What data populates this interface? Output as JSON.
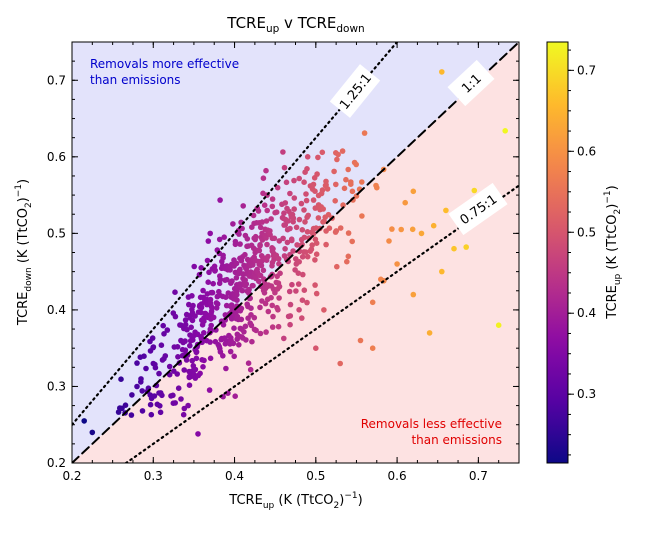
{
  "chart_data": {
    "type": "scatter",
    "title_main": "TCRE",
    "title_sub1": "up",
    "title_mid": " v TCRE",
    "title_sub2": "down",
    "xlabel_main": "TCRE",
    "xlabel_sub": "up",
    "xlabel_unit": " (K (TtCO",
    "xlabel_unit_sub": "2",
    "xlabel_unit_end": ")",
    "xlabel_unit_sup": "−1",
    "xlabel_close": ")",
    "ylabel_main": "TCRE",
    "ylabel_sub": "down",
    "ylabel_unit": " (K (TtCO",
    "ylabel_unit_sub": "2",
    "ylabel_unit_end": ")",
    "ylabel_unit_sup": "−1",
    "ylabel_close": ")",
    "cbar_label_main": "TCRE",
    "cbar_label_sub": "up",
    "cbar_label_unit": " (K (TtCO",
    "cbar_label_unit_sub": "2",
    "cbar_label_unit_end": ")",
    "cbar_label_unit_sup": "−1",
    "cbar_label_close": ")",
    "xlim": [
      0.2,
      0.75
    ],
    "ylim": [
      0.2,
      0.75
    ],
    "xticks": [
      0.2,
      0.3,
      0.4,
      0.5,
      0.6,
      0.7
    ],
    "xtick_labels": [
      "0.2",
      "0.3",
      "0.4",
      "0.5",
      "0.6",
      "0.7"
    ],
    "yticks": [
      0.2,
      0.3,
      0.4,
      0.5,
      0.6,
      0.7
    ],
    "ytick_labels": [
      "0.2",
      "0.3",
      "0.4",
      "0.5",
      "0.6",
      "0.7"
    ],
    "colorbar": {
      "colormap": "plasma",
      "range": [
        0.215,
        0.735
      ],
      "ticks": [
        0.3,
        0.4,
        0.5,
        0.6,
        0.7
      ],
      "tick_labels": [
        "0.3",
        "0.4",
        "0.5",
        "0.6",
        "0.7"
      ]
    },
    "regions": [
      {
        "name": "above",
        "color": "#e3e3fb",
        "text": [
          "Removals more effective",
          "than emissions"
        ],
        "text_color": "#0000cc"
      },
      {
        "name": "below",
        "color": "#fde2e2",
        "text": [
          "Removals less effective",
          "than emissions"
        ],
        "text_color": "#e00000"
      }
    ],
    "ratio_lines": [
      {
        "ratio": 1.25,
        "label": "1.25:1",
        "style": "dotted"
      },
      {
        "ratio": 1.0,
        "label": "1:1",
        "style": "dashed"
      },
      {
        "ratio": 0.75,
        "label": "0.75:1",
        "style": "dotted"
      }
    ],
    "outliers": [
      [
        0.215,
        0.255
      ],
      [
        0.225,
        0.24
      ],
      [
        0.355,
        0.238
      ],
      [
        0.655,
        0.711
      ],
      [
        0.695,
        0.556
      ],
      [
        0.733,
        0.634
      ],
      [
        0.725,
        0.38
      ],
      [
        0.685,
        0.482
      ],
      [
        0.67,
        0.48
      ],
      [
        0.56,
        0.631
      ],
      [
        0.545,
        0.555
      ],
      [
        0.57,
        0.35
      ],
      [
        0.64,
        0.37
      ],
      [
        0.62,
        0.42
      ],
      [
        0.6,
        0.46
      ],
      [
        0.655,
        0.45
      ],
      [
        0.605,
        0.505
      ],
      [
        0.63,
        0.5
      ],
      [
        0.645,
        0.51
      ],
      [
        0.66,
        0.53
      ],
      [
        0.62,
        0.555
      ],
      [
        0.61,
        0.54
      ],
      [
        0.59,
        0.49
      ],
      [
        0.58,
        0.44
      ],
      [
        0.555,
        0.36
      ],
      [
        0.53,
        0.33
      ],
      [
        0.5,
        0.35
      ],
      [
        0.49,
        0.6
      ],
      [
        0.44,
        0.55
      ],
      [
        0.37,
        0.5
      ],
      [
        0.3,
        0.33
      ],
      [
        0.28,
        0.3
      ],
      [
        0.52,
        0.52
      ],
      [
        0.54,
        0.47
      ],
      [
        0.57,
        0.41
      ],
      [
        0.51,
        0.4
      ]
    ],
    "cloud": {
      "n": 640,
      "x_mean": 0.415,
      "x_sd": 0.075,
      "ratio_mean": 1.045,
      "ratio_sd": 0.115,
      "x_range": [
        0.255,
        0.62
      ],
      "y_range": [
        0.262,
        0.61
      ]
    }
  }
}
